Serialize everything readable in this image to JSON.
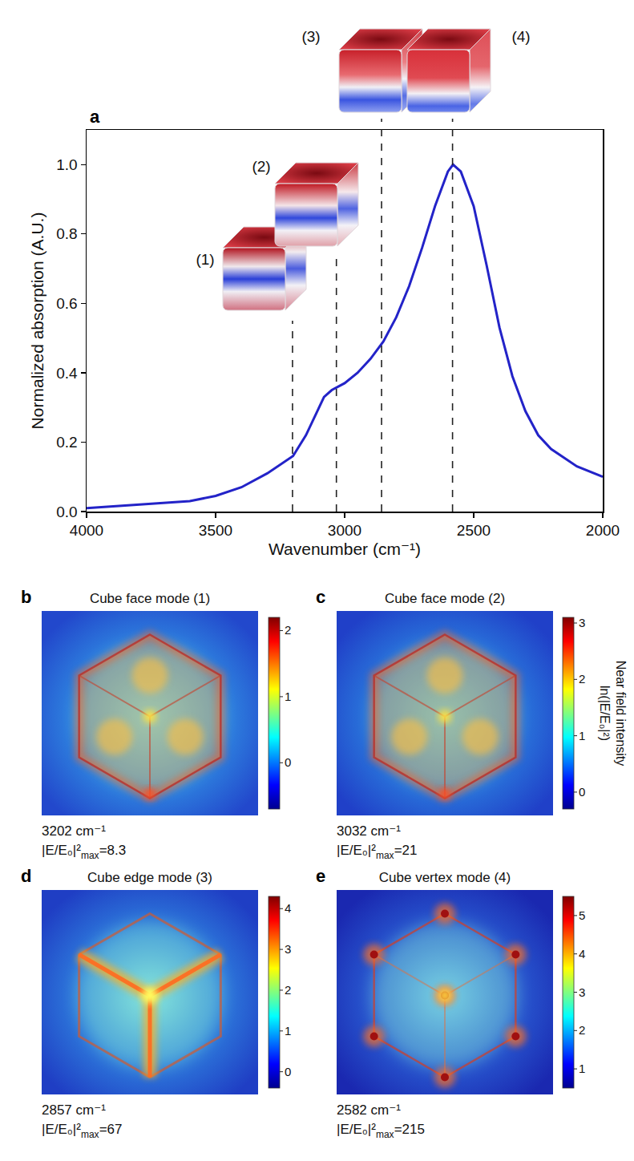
{
  "chart_data": {
    "type": "line",
    "x": [
      4000,
      3800,
      3600,
      3500,
      3400,
      3300,
      3200,
      3150,
      3100,
      3080,
      3050,
      3000,
      2950,
      2900,
      2850,
      2800,
      2750,
      2700,
      2650,
      2600,
      2580,
      2550,
      2500,
      2450,
      2400,
      2350,
      2300,
      2250,
      2200,
      2100,
      2000
    ],
    "values": [
      0.01,
      0.02,
      0.03,
      0.045,
      0.07,
      0.11,
      0.16,
      0.22,
      0.3,
      0.33,
      0.35,
      0.37,
      0.4,
      0.44,
      0.49,
      0.56,
      0.65,
      0.76,
      0.88,
      0.98,
      1.0,
      0.98,
      0.88,
      0.71,
      0.53,
      0.39,
      0.29,
      0.22,
      0.18,
      0.13,
      0.1
    ],
    "color": "#2323c8",
    "xlabel": "Wavenumber (cm⁻¹)",
    "ylabel": "Normalized absorption (A.U.)",
    "xlim": [
      4000,
      2000
    ],
    "xticks": [
      4000,
      3500,
      3000,
      2500,
      2000
    ],
    "ylim": [
      0,
      1.1
    ],
    "yticks": [
      {
        "value": 0,
        "label": "0.0"
      },
      0.2,
      0.4,
      0.6,
      0.8,
      {
        "value": 1,
        "label": "1.0"
      }
    ],
    "grid": false,
    "line_style": "solid"
  },
  "panel_a_letter": "a",
  "colorbar_title": [
    "Near field intensity",
    "ln(|E/E₀|²)"
  ],
  "mode_panels": [
    {
      "letter": "b",
      "title": "Cube face mode (1)",
      "inset_label": "(1)",
      "wavenumber": 3202,
      "unit": "cm⁻¹",
      "enhancement": {
        "symbol": "|E/E₀|²",
        "subscript": "max",
        "relation": "=",
        "value": 8.3
      },
      "colorbar": {
        "range": [
          -0.7,
          2.2
        ],
        "ticks": [
          0,
          1,
          2
        ]
      }
    },
    {
      "letter": "c",
      "title": "Cube face mode (2)",
      "inset_label": "(2)",
      "wavenumber": 3032,
      "unit": "cm⁻¹",
      "enhancement": {
        "symbol": "|E/E₀|²",
        "subscript": "max",
        "relation": "=",
        "value": 21
      },
      "colorbar": {
        "range": [
          -0.3,
          3.1
        ],
        "ticks": [
          0,
          1,
          2,
          3
        ]
      }
    },
    {
      "letter": "d",
      "title": "Cube edge mode (3)",
      "inset_label": "(3)",
      "wavenumber": 2857,
      "unit": "cm⁻¹",
      "enhancement": {
        "symbol": "|E/E₀|²",
        "subscript": "max",
        "relation": "=",
        "value": 67
      },
      "colorbar": {
        "range": [
          -0.4,
          4.3
        ],
        "ticks": [
          0,
          1,
          2,
          3,
          4
        ]
      }
    },
    {
      "letter": "e",
      "title": "Cube vertex mode (4)",
      "inset_label": "(4)",
      "wavenumber": 2582,
      "unit": "cm⁻¹",
      "enhancement": {
        "symbol": "|E/E₀|²",
        "subscript": "max",
        "relation": "=",
        "value": 215
      },
      "colorbar": {
        "range": [
          0.5,
          5.5
        ],
        "ticks": [
          1,
          2,
          3,
          4,
          5
        ]
      }
    }
  ]
}
